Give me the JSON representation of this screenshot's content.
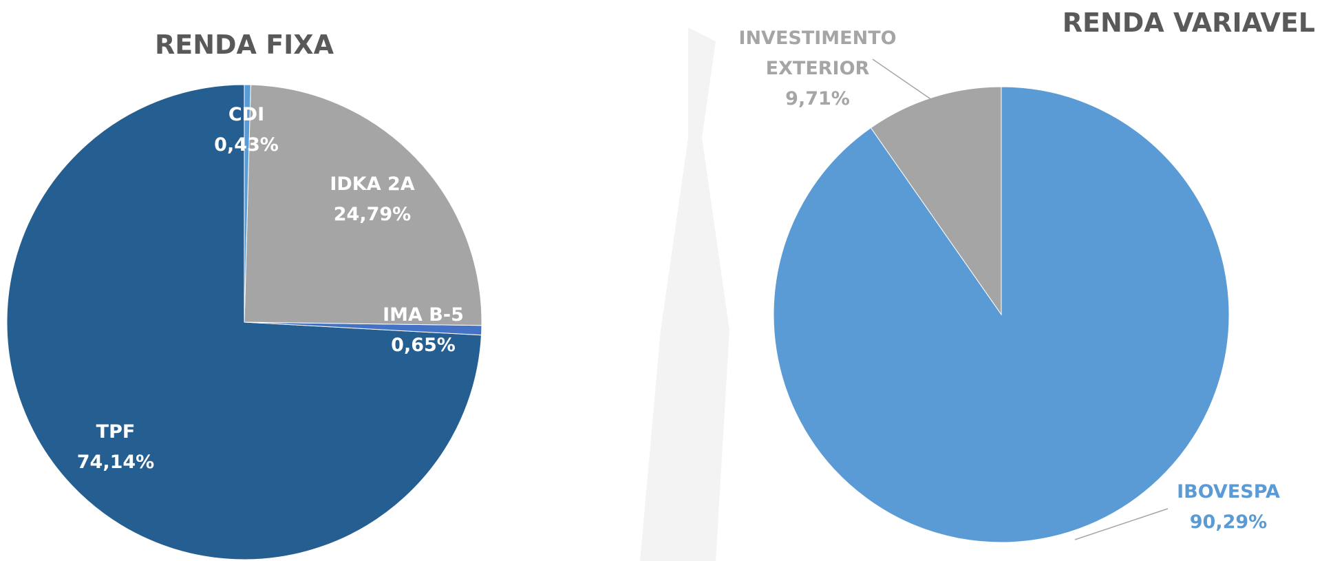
{
  "chart_data": [
    {
      "type": "pie",
      "title": "RENDA FIXA",
      "categories": [
        "CDI",
        "IDKA 2A",
        "IMA B-5",
        "TPF"
      ],
      "values": [
        0.43,
        24.79,
        0.65,
        74.14
      ],
      "value_labels": [
        "0,43%",
        "24,79%",
        "0,65%",
        "74,14%"
      ],
      "colors": [
        "#5b9bd5",
        "#a5a5a5",
        "#4472c4",
        "#255e91"
      ]
    },
    {
      "type": "pie",
      "title": "RENDA VARIAVEL",
      "categories": [
        "IBOVESPA",
        "INVESTIMENTO EXTERIOR"
      ],
      "values": [
        90.29,
        9.71
      ],
      "value_labels": [
        "90,29%",
        "9,71%"
      ],
      "colors": [
        "#5b9bd5",
        "#a5a5a5"
      ]
    }
  ]
}
